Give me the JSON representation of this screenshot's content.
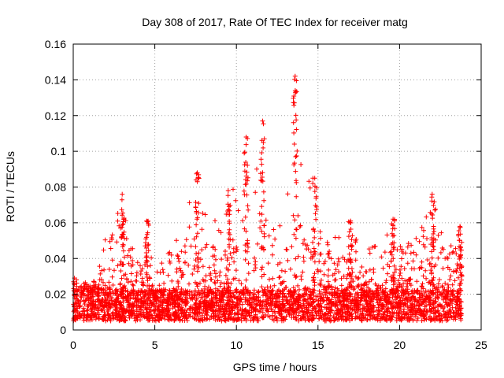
{
  "chart_data": {
    "type": "scatter",
    "title": "Day 308 of 2017, Rate Of TEC Index for receiver matg",
    "xlabel": "GPS time / hours",
    "ylabel": "ROTI / TECUs",
    "xlim": [
      0,
      25
    ],
    "ylim": [
      0,
      0.16
    ],
    "xticks": [
      "0",
      "5",
      "10",
      "15",
      "20",
      "25"
    ],
    "yticks": [
      "0",
      "0.02",
      "0.04",
      "0.06",
      "0.08",
      "0.1",
      "0.12",
      "0.14",
      "0.16"
    ],
    "grid": true,
    "marker": "+",
    "color": "#ff0000",
    "series": [
      {
        "name": "ROTI",
        "x_range": [
          0,
          23.8
        ],
        "baseline_min": 0.005,
        "baseline_max": 0.022,
        "envelope": [
          {
            "x": 0.0,
            "y": 0.03
          },
          {
            "x": 0.5,
            "y": 0.028
          },
          {
            "x": 1.0,
            "y": 0.025
          },
          {
            "x": 1.5,
            "y": 0.03
          },
          {
            "x": 2.0,
            "y": 0.056
          },
          {
            "x": 2.5,
            "y": 0.058
          },
          {
            "x": 3.0,
            "y": 0.076
          },
          {
            "x": 3.5,
            "y": 0.05
          },
          {
            "x": 4.0,
            "y": 0.045
          },
          {
            "x": 4.5,
            "y": 0.061
          },
          {
            "x": 5.0,
            "y": 0.03
          },
          {
            "x": 5.5,
            "y": 0.04
          },
          {
            "x": 6.0,
            "y": 0.045
          },
          {
            "x": 6.5,
            "y": 0.055
          },
          {
            "x": 7.0,
            "y": 0.069
          },
          {
            "x": 7.5,
            "y": 0.088
          },
          {
            "x": 8.0,
            "y": 0.065
          },
          {
            "x": 8.5,
            "y": 0.065
          },
          {
            "x": 9.0,
            "y": 0.066
          },
          {
            "x": 9.5,
            "y": 0.078
          },
          {
            "x": 10.0,
            "y": 0.08
          },
          {
            "x": 10.5,
            "y": 0.108
          },
          {
            "x": 11.0,
            "y": 0.1
          },
          {
            "x": 11.5,
            "y": 0.117
          },
          {
            "x": 12.0,
            "y": 0.07
          },
          {
            "x": 12.5,
            "y": 0.06
          },
          {
            "x": 13.0,
            "y": 0.055
          },
          {
            "x": 13.5,
            "y": 0.142
          },
          {
            "x": 14.0,
            "y": 0.09
          },
          {
            "x": 14.5,
            "y": 0.085
          },
          {
            "x": 15.0,
            "y": 0.06
          },
          {
            "x": 15.5,
            "y": 0.05
          },
          {
            "x": 16.0,
            "y": 0.055
          },
          {
            "x": 16.5,
            "y": 0.05
          },
          {
            "x": 17.0,
            "y": 0.061
          },
          {
            "x": 17.5,
            "y": 0.05
          },
          {
            "x": 18.0,
            "y": 0.05
          },
          {
            "x": 18.5,
            "y": 0.05
          },
          {
            "x": 19.0,
            "y": 0.055
          },
          {
            "x": 19.5,
            "y": 0.062
          },
          {
            "x": 20.0,
            "y": 0.05
          },
          {
            "x": 20.5,
            "y": 0.05
          },
          {
            "x": 21.0,
            "y": 0.055
          },
          {
            "x": 21.5,
            "y": 0.06
          },
          {
            "x": 22.0,
            "y": 0.076
          },
          {
            "x": 22.5,
            "y": 0.06
          },
          {
            "x": 23.0,
            "y": 0.05
          },
          {
            "x": 23.5,
            "y": 0.058
          },
          {
            "x": 23.8,
            "y": 0.058
          }
        ],
        "peaks": [
          {
            "x": 3.0,
            "y": 0.076
          },
          {
            "x": 4.5,
            "y": 0.061
          },
          {
            "x": 7.6,
            "y": 0.088
          },
          {
            "x": 9.5,
            "y": 0.078
          },
          {
            "x": 10.6,
            "y": 0.108
          },
          {
            "x": 11.6,
            "y": 0.117
          },
          {
            "x": 13.6,
            "y": 0.142
          },
          {
            "x": 14.8,
            "y": 0.085
          },
          {
            "x": 17.0,
            "y": 0.061
          },
          {
            "x": 19.6,
            "y": 0.062
          },
          {
            "x": 22.0,
            "y": 0.076
          },
          {
            "x": 23.7,
            "y": 0.058
          }
        ]
      }
    ]
  }
}
